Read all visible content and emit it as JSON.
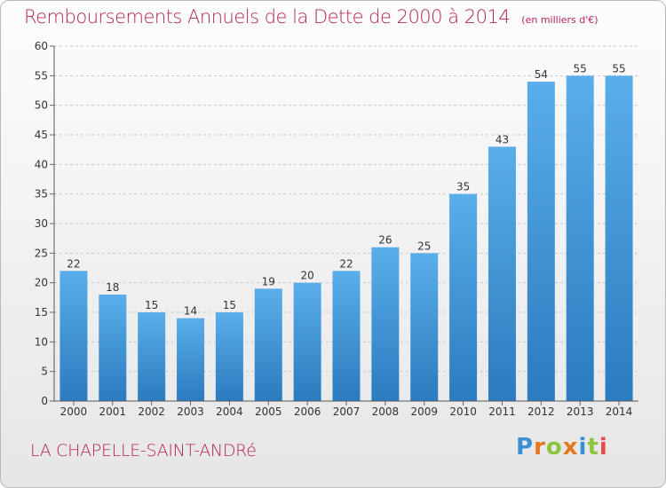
{
  "header": {
    "title": "Remboursements Annuels de la Dette de 2000 à 2014",
    "subtitle": "(en milliers d'€)"
  },
  "footer": {
    "commune": "LA CHAPELLE-SAINT-ANDRé",
    "logo_text": "Proxiti"
  },
  "colors": {
    "title": "#b5235a",
    "bar_top": "#5aaeea",
    "bar_bottom": "#2a7bbf",
    "grid": "#c8c8c8"
  },
  "chart_data": {
    "type": "bar",
    "title": "Remboursements Annuels de la Dette de 2000 à 2014",
    "subtitle": "(en milliers d'€)",
    "categories": [
      "2000",
      "2001",
      "2002",
      "2003",
      "2004",
      "2005",
      "2006",
      "2007",
      "2008",
      "2009",
      "2010",
      "2011",
      "2012",
      "2013",
      "2014"
    ],
    "values": [
      22,
      18,
      15,
      14,
      15,
      19,
      20,
      22,
      26,
      25,
      35,
      43,
      54,
      55,
      55
    ],
    "data_labels": [
      "22",
      "18",
      "15",
      "14",
      "15",
      "19",
      "20",
      "22",
      "26",
      "25",
      "35",
      "43",
      "54",
      "55",
      "55"
    ],
    "ylim": [
      0,
      60
    ],
    "yticks": [
      0,
      5,
      10,
      15,
      20,
      25,
      30,
      35,
      40,
      45,
      50,
      55,
      60
    ],
    "grid": true,
    "legend": "none"
  }
}
